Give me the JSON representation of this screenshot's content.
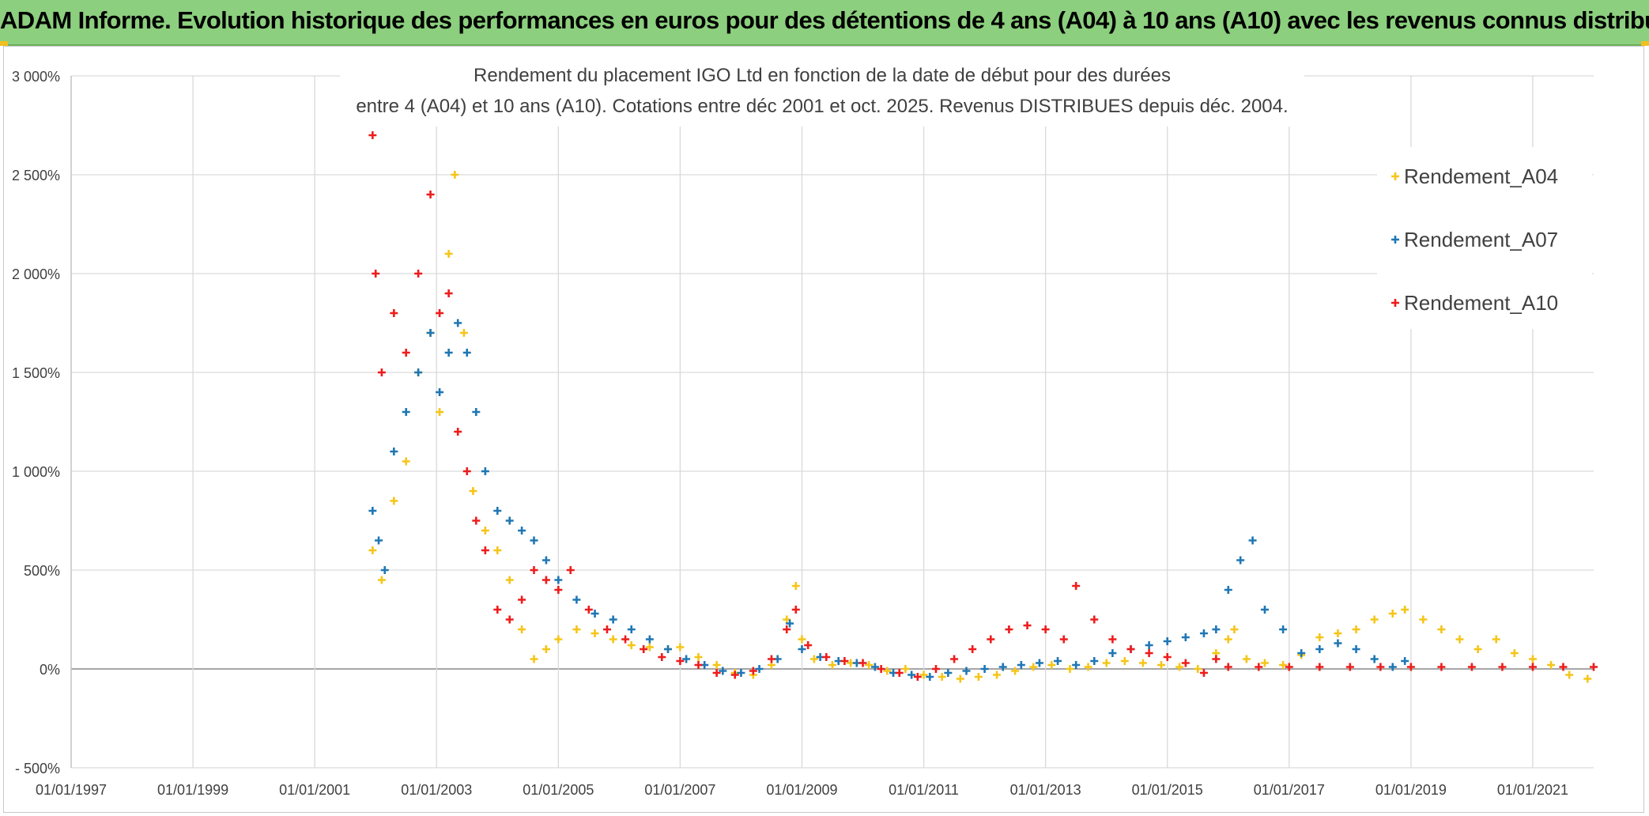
{
  "header": {
    "title": "ADAM Informe. Evolution historique des performances en euros pour des détentions de 4 ans (A04) à 10 ans (A10) avec les revenus connus distribués"
  },
  "colors": {
    "banner": "#8ccf7e",
    "A04": "#f5c518",
    "A07": "#1f77b4",
    "A10": "#ee1c1c",
    "grid": "#d9d9d9",
    "axis_text": "#404040"
  },
  "chart_data": {
    "type": "scatter",
    "title_line1": "Rendement du placement IGO Ltd  en fonction de la date de début pour des durées",
    "title_line2": "entre 4 (A04) et 10 ans (A10). Cotations entre déc 2001 et oct. 2025. Revenus DISTRIBUES depuis déc. 2004.",
    "x_unit": "year",
    "xlim": [
      1997.0,
      2022.0
    ],
    "ylim": [
      -500,
      3000
    ],
    "x_ticks": [
      1997,
      1999,
      2001,
      2003,
      2005,
      2007,
      2009,
      2011,
      2013,
      2015,
      2017,
      2019,
      2021
    ],
    "x_tick_labels": [
      "01/01/1997",
      "01/01/1999",
      "01/01/2001",
      "01/01/2003",
      "01/01/2005",
      "01/01/2007",
      "01/01/2009",
      "01/01/2011",
      "01/01/2013",
      "01/01/2015",
      "01/01/2017",
      "01/01/2019",
      "01/01/2021"
    ],
    "y_ticks": [
      -500,
      0,
      500,
      1000,
      1500,
      2000,
      2500,
      3000
    ],
    "y_tick_labels": [
      "- 500%",
      "0%",
      "500%",
      "1 000%",
      "1 500%",
      "2 000%",
      "2 500%",
      "3 000%"
    ],
    "legend_position": "right",
    "series": [
      {
        "name": "Rendement_A04",
        "color": "#f5c518",
        "x": [
          2001.95,
          2002.1,
          2002.3,
          2002.5,
          2002.7,
          2002.9,
          2003.05,
          2003.2,
          2003.3,
          2003.45,
          2003.6,
          2003.8,
          2004.0,
          2004.2,
          2004.4,
          2004.6,
          2004.8,
          2005.0,
          2005.3,
          2005.6,
          2005.9,
          2006.2,
          2006.5,
          2006.8,
          2007.0,
          2007.3,
          2007.6,
          2007.9,
          2008.2,
          2008.5,
          2008.75,
          2008.9,
          2009.0,
          2009.2,
          2009.5,
          2009.8,
          2010.1,
          2010.4,
          2010.7,
          2011.0,
          2011.3,
          2011.6,
          2011.9,
          2012.2,
          2012.5,
          2012.8,
          2013.1,
          2013.4,
          2013.7,
          2014.0,
          2014.3,
          2014.6,
          2014.9,
          2015.2,
          2015.5,
          2015.8,
          2016.0,
          2016.1,
          2016.3,
          2016.6,
          2016.9,
          2017.2,
          2017.5,
          2017.8,
          2018.1,
          2018.4,
          2018.7,
          2018.9,
          2019.2,
          2019.5,
          2019.8,
          2020.1,
          2020.4,
          2020.7,
          2021.0,
          2021.3,
          2021.6,
          2021.9
        ],
        "values": [
          600,
          450,
          850,
          1050,
          1500,
          1700,
          1300,
          2100,
          2500,
          1700,
          900,
          700,
          600,
          450,
          200,
          50,
          100,
          150,
          200,
          180,
          150,
          120,
          110,
          100,
          110,
          60,
          20,
          -20,
          -30,
          20,
          250,
          420,
          150,
          50,
          20,
          30,
          20,
          -10,
          0,
          -30,
          -40,
          -50,
          -40,
          -30,
          -10,
          10,
          20,
          0,
          10,
          30,
          40,
          30,
          20,
          10,
          0,
          80,
          150,
          200,
          50,
          30,
          20,
          70,
          160,
          180,
          200,
          250,
          280,
          300,
          250,
          200,
          150,
          100,
          150,
          80,
          50,
          20,
          -30,
          -50
        ]
      },
      {
        "name": "Rendement_A07",
        "color": "#1f77b4",
        "x": [
          2001.95,
          2002.05,
          2002.15,
          2002.3,
          2002.5,
          2002.7,
          2002.9,
          2003.05,
          2003.2,
          2003.35,
          2003.5,
          2003.65,
          2003.8,
          2004.0,
          2004.2,
          2004.4,
          2004.6,
          2004.8,
          2005.0,
          2005.3,
          2005.6,
          2005.9,
          2006.2,
          2006.5,
          2006.8,
          2007.1,
          2007.4,
          2007.7,
          2008.0,
          2008.3,
          2008.6,
          2008.8,
          2009.0,
          2009.3,
          2009.6,
          2009.9,
          2010.2,
          2010.5,
          2010.8,
          2011.1,
          2011.4,
          2011.7,
          2012.0,
          2012.3,
          2012.6,
          2012.9,
          2013.2,
          2013.5,
          2013.8,
          2014.1,
          2014.4,
          2014.7,
          2015.0,
          2015.3,
          2015.6,
          2015.8,
          2016.0,
          2016.2,
          2016.4,
          2016.6,
          2016.9,
          2017.2,
          2017.5,
          2017.8,
          2018.1,
          2018.4,
          2018.7,
          2018.9
        ],
        "values": [
          800,
          650,
          500,
          1100,
          1300,
          1500,
          1700,
          1400,
          1600,
          1750,
          1600,
          1300,
          1000,
          800,
          750,
          700,
          650,
          550,
          450,
          350,
          280,
          250,
          200,
          150,
          100,
          50,
          20,
          -10,
          -20,
          0,
          50,
          230,
          100,
          60,
          40,
          30,
          10,
          -20,
          -30,
          -40,
          -20,
          -10,
          0,
          10,
          20,
          30,
          40,
          20,
          40,
          80,
          100,
          120,
          140,
          160,
          180,
          200,
          400,
          550,
          650,
          300,
          200,
          80,
          100,
          130,
          100,
          50,
          10,
          40
        ]
      },
      {
        "name": "Rendement_A10",
        "color": "#ee1c1c",
        "x": [
          2001.95,
          2002.0,
          2002.1,
          2002.3,
          2002.5,
          2002.7,
          2002.9,
          2003.05,
          2003.2,
          2003.35,
          2003.5,
          2003.65,
          2003.8,
          2004.0,
          2004.2,
          2004.4,
          2004.6,
          2004.8,
          2005.0,
          2005.2,
          2005.5,
          2005.8,
          2006.1,
          2006.4,
          2006.7,
          2007.0,
          2007.3,
          2007.6,
          2007.9,
          2008.2,
          2008.5,
          2008.75,
          2008.9,
          2009.1,
          2009.4,
          2009.7,
          2010.0,
          2010.3,
          2010.6,
          2010.9,
          2011.2,
          2011.5,
          2011.8,
          2012.1,
          2012.4,
          2012.7,
          2013.0,
          2013.3,
          2013.5,
          2013.8,
          2014.1,
          2014.4,
          2014.7,
          2015.0,
          2015.3,
          2015.6,
          2015.8,
          2016.0,
          2016.5,
          2017.0,
          2017.5,
          2018.0,
          2018.5,
          2019.0,
          2019.5,
          2020.0,
          2020.5,
          2021.0,
          2021.5,
          2022.0
        ],
        "values": [
          2700,
          2000,
          1500,
          1800,
          1600,
          2000,
          2400,
          1800,
          1900,
          1200,
          1000,
          750,
          600,
          300,
          250,
          350,
          500,
          450,
          400,
          500,
          300,
          200,
          150,
          100,
          60,
          40,
          20,
          -20,
          -30,
          -10,
          50,
          200,
          300,
          120,
          60,
          40,
          30,
          0,
          -20,
          -40,
          0,
          50,
          100,
          150,
          200,
          220,
          200,
          150,
          420,
          250,
          150,
          100,
          80,
          60,
          30,
          -20,
          50,
          10,
          10,
          10,
          10,
          10,
          10,
          10,
          10,
          10,
          10,
          10,
          10,
          10
        ]
      }
    ]
  }
}
